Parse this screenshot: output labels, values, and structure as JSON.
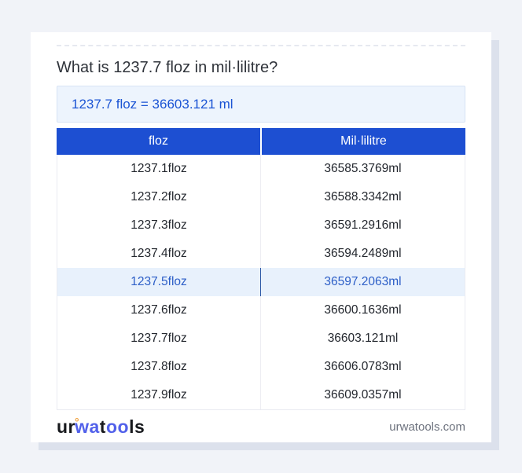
{
  "header": {
    "question": "What is 1237.7 floz in mil·lilitre?",
    "result": "1237.7 floz = 36603.121 ml"
  },
  "table": {
    "headers": [
      "floz",
      "Mil·lilitre"
    ],
    "highlighted_row_index": 4,
    "rows": [
      {
        "floz": "1237.1floz",
        "ml": "36585.3769ml"
      },
      {
        "floz": "1237.2floz",
        "ml": "36588.3342ml"
      },
      {
        "floz": "1237.3floz",
        "ml": "36591.2916ml"
      },
      {
        "floz": "1237.4floz",
        "ml": "36594.2489ml"
      },
      {
        "floz": "1237.5floz",
        "ml": "36597.2063ml"
      },
      {
        "floz": "1237.6floz",
        "ml": "36600.1636ml"
      },
      {
        "floz": "1237.7floz",
        "ml": "36603.121ml"
      },
      {
        "floz": "1237.8floz",
        "ml": "36606.0783ml"
      },
      {
        "floz": "1237.9floz",
        "ml": "36609.0357ml"
      }
    ]
  },
  "footer": {
    "logo_parts": [
      {
        "text": "ur",
        "style": "dark"
      },
      {
        "text": "°",
        "style": "ring"
      },
      {
        "text": "wa",
        "style": "blue"
      },
      {
        "text": "t",
        "style": "dark"
      },
      {
        "text": "oo",
        "style": "blue"
      },
      {
        "text": "ls",
        "style": "dark"
      }
    ],
    "domain": "urwatools.com"
  },
  "colors": {
    "page_background": "#f1f3f8",
    "card_background": "#ffffff",
    "card_shadow": "#dce1ec",
    "header_blue": "#1d4fd2",
    "result_box_background": "#edf4fd",
    "result_text_blue": "#1b54d4",
    "highlight_row_background": "#e8f1fc",
    "highlight_row_text": "#2c5ec7",
    "logo_blue": "#5261ea",
    "logo_ring_orange": "#f0a13d"
  }
}
